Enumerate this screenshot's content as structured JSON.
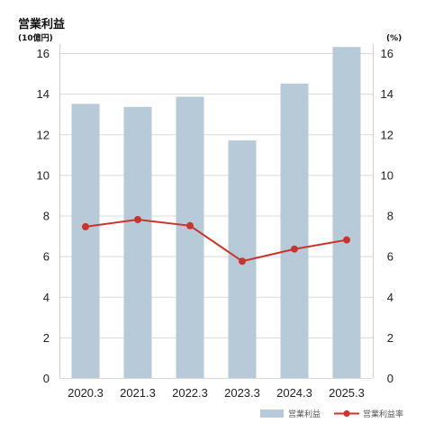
{
  "colors": {
    "bar": "#b6cad7",
    "line": "#c9352e",
    "grid": "#d9d9d9",
    "axis": "#cfcfcf"
  },
  "chart_data": {
    "type": "bar",
    "title": "営業利益",
    "ylabel": "(10億円)",
    "y2label": "(%)",
    "categories": [
      "2020.3",
      "2021.3",
      "2022.3",
      "2023.3",
      "2024.3",
      "2025.3"
    ],
    "series": [
      {
        "name": "営業利益",
        "type": "bar",
        "axis": "left",
        "values": [
          13.5,
          13.35,
          13.85,
          11.7,
          14.5,
          16.3
        ]
      },
      {
        "name": "営業利益率",
        "type": "line",
        "axis": "right",
        "values": [
          7.45,
          7.8,
          7.5,
          5.75,
          6.35,
          6.8
        ]
      }
    ],
    "ylim": [
      0,
      16
    ],
    "y2lim": [
      0,
      16
    ],
    "yticks": [
      "0",
      "2",
      "4",
      "6",
      "8",
      "10",
      "12",
      "14",
      "16"
    ],
    "y2ticks": [
      "0",
      "2",
      "4",
      "6",
      "8",
      "10",
      "12",
      "14",
      "16"
    ],
    "grid": true,
    "legend_position": "bottom-right"
  }
}
